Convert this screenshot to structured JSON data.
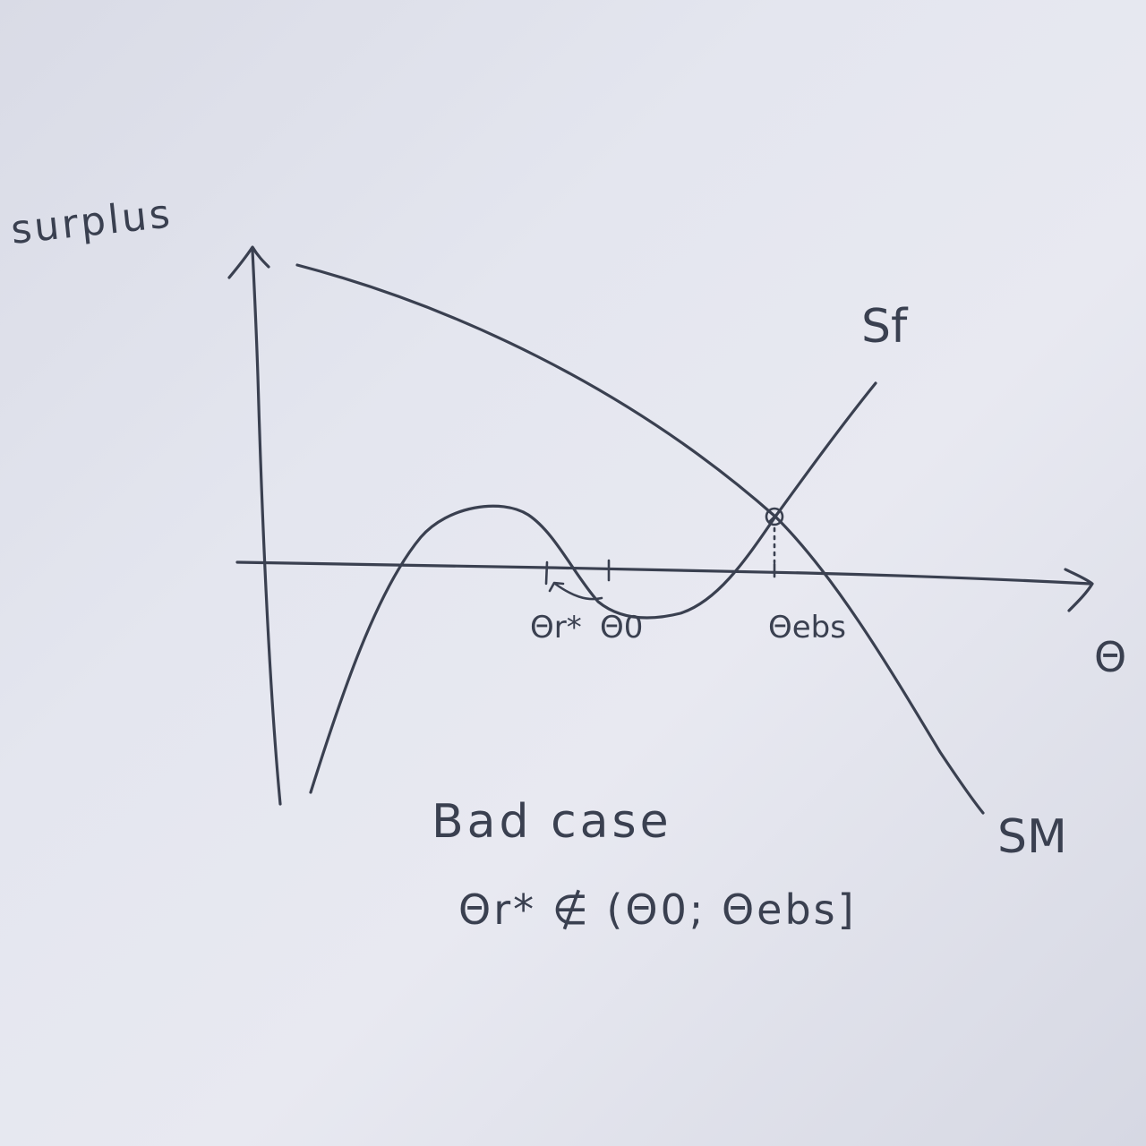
{
  "diagram": {
    "y_axis_label": "surplus",
    "x_axis_label": "Θ",
    "curves": [
      {
        "id": "sf",
        "label": "Sf"
      },
      {
        "id": "sm",
        "label": "SM"
      }
    ],
    "ticks": [
      {
        "id": "theta_r",
        "label": "Θr*"
      },
      {
        "id": "theta_0",
        "label": "Θ0"
      },
      {
        "id": "theta_ebs",
        "label": "Θebs"
      }
    ],
    "caption": "Bad case",
    "condition": "Θr* ∉ (Θ0; Θebs]"
  }
}
